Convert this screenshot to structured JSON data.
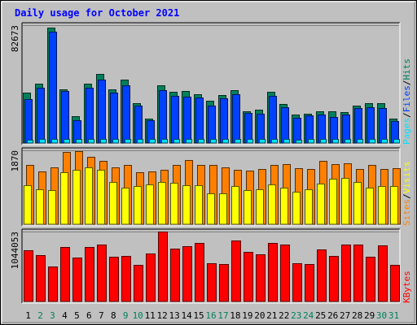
{
  "title": "Daily usage for October 2021",
  "colors": {
    "background": "#c0c0c0",
    "title": "#0000ff",
    "hits": "#00805c",
    "files": "#0040ff",
    "pages": "#00e0ff",
    "visits": "#ffff00",
    "sites": "#ff8000",
    "kbytes": "#ff0000",
    "weekend_day": "#00805c",
    "weekday": "#000000"
  },
  "chart_data": [
    {
      "type": "bar",
      "name": "hits-files-pages",
      "ylabel_parts": [
        "Pages",
        "/",
        "Files",
        "/",
        "Hits"
      ],
      "y_max_label": "82673",
      "y_max": 82673,
      "categories": [
        "1",
        "2",
        "3",
        "4",
        "5",
        "6",
        "7",
        "8",
        "9",
        "10",
        "11",
        "12",
        "13",
        "14",
        "15",
        "16",
        "17",
        "18",
        "19",
        "20",
        "21",
        "22",
        "23",
        "24",
        "25",
        "26",
        "27",
        "28",
        "29",
        "30",
        "31"
      ],
      "series": [
        {
          "name": "Hits",
          "values": [
            35200,
            41700,
            80900,
            37700,
            19000,
            41700,
            48200,
            37800,
            44700,
            28200,
            17000,
            40400,
            35700,
            36600,
            34100,
            29800,
            33500,
            37200,
            22400,
            23600,
            36200,
            27200,
            20100,
            20600,
            22400,
            22000,
            21500,
            26200,
            28200,
            27700,
            17300
          ]
        },
        {
          "name": "Files",
          "values": [
            30600,
            38800,
            78100,
            36700,
            16100,
            38800,
            44300,
            35200,
            40700,
            26100,
            15900,
            37200,
            32900,
            32600,
            32000,
            26000,
            31100,
            34100,
            21000,
            20600,
            33000,
            25200,
            17800,
            19200,
            20100,
            18500,
            20000,
            24700,
            25100,
            24700,
            15200
          ]
        },
        {
          "name": "Pages",
          "values": [
            2500,
            2700,
            2600,
            2900,
            2700,
            3000,
            2800,
            2600,
            2900,
            2600,
            2700,
            2800,
            3000,
            2900,
            2800,
            2600,
            2800,
            3000,
            2700,
            2600,
            2900,
            2800,
            2500,
            2600,
            2800,
            2700,
            2600,
            2800,
            2900,
            2800,
            2600
          ]
        }
      ]
    },
    {
      "type": "bar",
      "name": "visits-sites",
      "ylabel_parts": [
        "Sites",
        "/",
        "Visits"
      ],
      "y_max_label": "1870",
      "y_max": 1870,
      "categories": [
        "1",
        "2",
        "3",
        "4",
        "5",
        "6",
        "7",
        "8",
        "9",
        "10",
        "11",
        "12",
        "13",
        "14",
        "15",
        "16",
        "17",
        "18",
        "19",
        "20",
        "21",
        "22",
        "23",
        "24",
        "25",
        "26",
        "27",
        "28",
        "29",
        "30",
        "31"
      ],
      "series": [
        {
          "name": "Visits",
          "values": [
            990,
            890,
            870,
            1310,
            1370,
            1430,
            1370,
            1070,
            920,
            970,
            1010,
            1070,
            1040,
            990,
            990,
            790,
            790,
            970,
            870,
            890,
            1010,
            920,
            830,
            890,
            1030,
            1160,
            1180,
            1070,
            920,
            970,
            970
          ]
        },
        {
          "name": "Sites",
          "values": [
            1490,
            1340,
            1430,
            1820,
            1850,
            1700,
            1600,
            1440,
            1510,
            1310,
            1340,
            1380,
            1490,
            1630,
            1510,
            1500,
            1440,
            1380,
            1360,
            1400,
            1500,
            1520,
            1420,
            1390,
            1600,
            1520,
            1540,
            1400,
            1500,
            1390,
            1420
          ]
        }
      ]
    },
    {
      "type": "bar",
      "name": "kbytes",
      "ylabel_parts": [
        "KBytes"
      ],
      "y_max_label": "1044053",
      "y_max": 1044053,
      "categories": [
        "1",
        "2",
        "3",
        "4",
        "5",
        "6",
        "7",
        "8",
        "9",
        "10",
        "11",
        "12",
        "13",
        "14",
        "15",
        "16",
        "17",
        "18",
        "19",
        "20",
        "21",
        "22",
        "23",
        "24",
        "25",
        "26",
        "27",
        "28",
        "29",
        "30",
        "31"
      ],
      "series": [
        {
          "name": "KBytes",
          "values": [
            765000,
            690000,
            525000,
            815000,
            660000,
            815000,
            845000,
            670000,
            680000,
            550000,
            715000,
            1044053,
            795000,
            830000,
            880000,
            565000,
            560000,
            910000,
            745000,
            705000,
            870000,
            855000,
            575000,
            560000,
            780000,
            680000,
            850000,
            855000,
            665000,
            840000,
            545000
          ]
        }
      ]
    }
  ]
}
